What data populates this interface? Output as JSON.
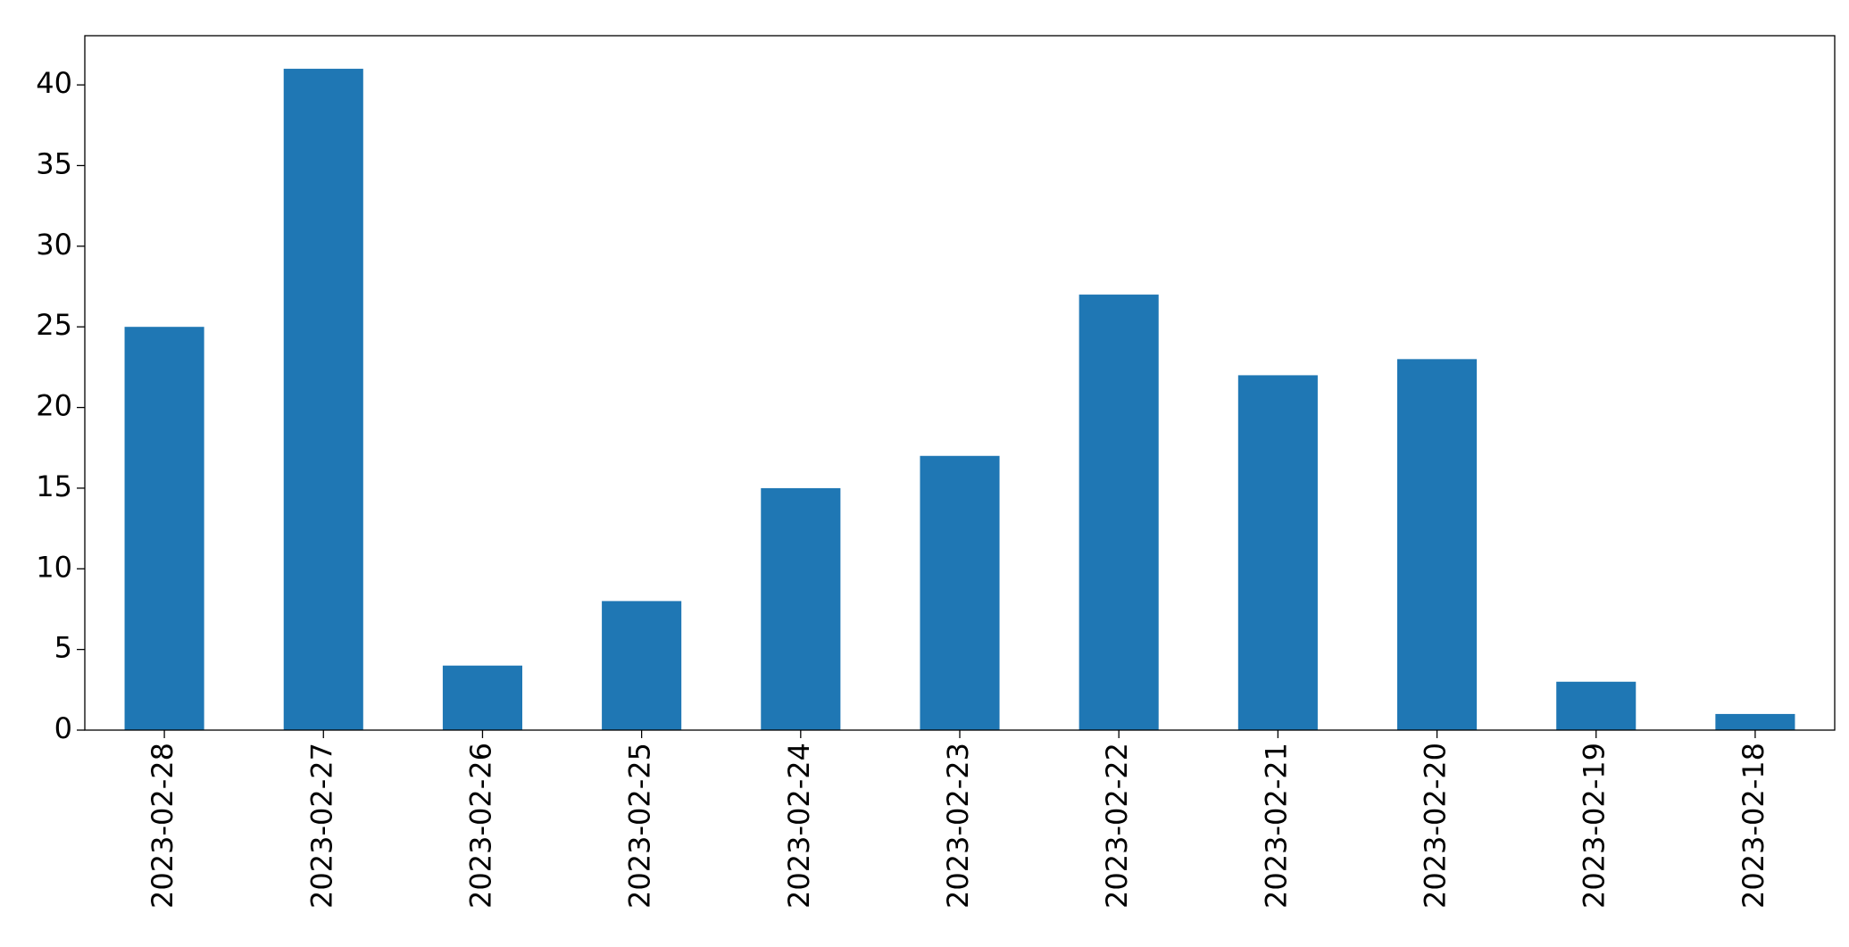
{
  "chart_data": {
    "type": "bar",
    "categories": [
      "2023-02-28",
      "2023-02-27",
      "2023-02-26",
      "2023-02-25",
      "2023-02-24",
      "2023-02-23",
      "2023-02-22",
      "2023-02-21",
      "2023-02-20",
      "2023-02-19",
      "2023-02-18"
    ],
    "values": [
      25,
      41,
      4,
      8,
      15,
      17,
      27,
      22,
      23,
      3,
      1
    ],
    "color": "#1f77b4",
    "ylim": [
      0,
      43.05
    ],
    "yticks": [
      0,
      5,
      10,
      15,
      20,
      25,
      30,
      35,
      40
    ],
    "grid": false
  }
}
